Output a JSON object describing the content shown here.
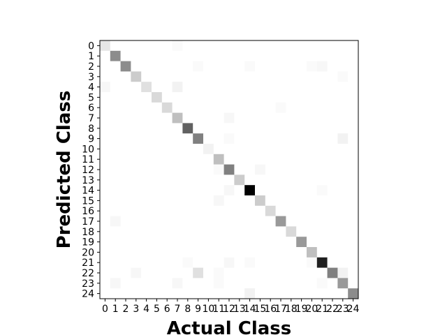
{
  "chart_data": {
    "type": "heatmap",
    "title": "",
    "xlabel": "Actual Class",
    "ylabel": "Predicted Class",
    "x_categories": [
      "0",
      "1",
      "2",
      "3",
      "4",
      "5",
      "6",
      "7",
      "8",
      "9",
      "10",
      "11",
      "12",
      "13",
      "14",
      "15",
      "16",
      "17",
      "18",
      "19",
      "20",
      "21",
      "22",
      "23",
      "24"
    ],
    "y_categories": [
      "0",
      "1",
      "2",
      "3",
      "4",
      "5",
      "6",
      "7",
      "8",
      "9",
      "10",
      "11",
      "12",
      "13",
      "14",
      "15",
      "16",
      "17",
      "18",
      "19",
      "20",
      "21",
      "22",
      "23",
      "24"
    ],
    "color_scale": "greys",
    "value_range": [
      0,
      1
    ],
    "colorbar": false,
    "grid": false,
    "values": [
      [
        0.1,
        0,
        0,
        0,
        0,
        0,
        0,
        0.02,
        0,
        0,
        0,
        0,
        0,
        0,
        0,
        0,
        0,
        0,
        0,
        0,
        0,
        0,
        0,
        0,
        0
      ],
      [
        0,
        0.45,
        0,
        0,
        0,
        0,
        0,
        0,
        0,
        0,
        0,
        0,
        0,
        0,
        0,
        0,
        0,
        0,
        0,
        0,
        0,
        0,
        0,
        0,
        0
      ],
      [
        0,
        0,
        0.45,
        0,
        0,
        0,
        0,
        0,
        0,
        0.02,
        0,
        0,
        0,
        0,
        0.02,
        0,
        0,
        0,
        0,
        0,
        0.02,
        0.03,
        0,
        0,
        0
      ],
      [
        0,
        0,
        0,
        0.2,
        0,
        0,
        0,
        0,
        0,
        0,
        0,
        0,
        0,
        0,
        0,
        0,
        0,
        0,
        0,
        0,
        0,
        0,
        0,
        0.02,
        0
      ],
      [
        0.03,
        0,
        0,
        0,
        0.12,
        0,
        0,
        0.05,
        0,
        0,
        0,
        0,
        0,
        0,
        0,
        0,
        0,
        0,
        0,
        0,
        0,
        0,
        0,
        0,
        0
      ],
      [
        0,
        0,
        0,
        0,
        0,
        0.15,
        0,
        0,
        0,
        0,
        0,
        0,
        0,
        0,
        0,
        0,
        0,
        0,
        0,
        0,
        0,
        0,
        0,
        0,
        0
      ],
      [
        0,
        0,
        0,
        0,
        0,
        0,
        0.15,
        0,
        0,
        0,
        0,
        0,
        0,
        0,
        0,
        0,
        0,
        0.02,
        0,
        0,
        0,
        0,
        0,
        0,
        0
      ],
      [
        0,
        0,
        0,
        0,
        0,
        0,
        0,
        0.25,
        0,
        0,
        0,
        0,
        0.03,
        0,
        0,
        0,
        0,
        0,
        0,
        0,
        0,
        0,
        0,
        0,
        0
      ],
      [
        0,
        0,
        0,
        0,
        0,
        0,
        0,
        0,
        0.62,
        0,
        0,
        0,
        0,
        0,
        0,
        0,
        0,
        0,
        0,
        0,
        0,
        0,
        0,
        0,
        0
      ],
      [
        0,
        0,
        0,
        0,
        0,
        0,
        0,
        0,
        0,
        0.5,
        0,
        0,
        0.02,
        0,
        0,
        0,
        0,
        0,
        0,
        0,
        0,
        0,
        0,
        0.05,
        0
      ],
      [
        0,
        0,
        0,
        0,
        0,
        0,
        0,
        0,
        0,
        0,
        0.05,
        0,
        0,
        0,
        0,
        0,
        0,
        0,
        0,
        0,
        0,
        0,
        0,
        0,
        0
      ],
      [
        0,
        0,
        0,
        0,
        0,
        0,
        0,
        0,
        0,
        0,
        0,
        0.25,
        0,
        0,
        0,
        0,
        0,
        0,
        0,
        0,
        0,
        0,
        0,
        0,
        0
      ],
      [
        0,
        0,
        0,
        0,
        0,
        0,
        0,
        0,
        0,
        0,
        0,
        0.02,
        0.5,
        0,
        0,
        0.03,
        0,
        0,
        0,
        0,
        0,
        0,
        0,
        0,
        0
      ],
      [
        0,
        0,
        0,
        0,
        0,
        0,
        0,
        0,
        0,
        0,
        0,
        0,
        0,
        0.2,
        0,
        0,
        0,
        0,
        0,
        0,
        0,
        0,
        0,
        0,
        0
      ],
      [
        0,
        0,
        0,
        0,
        0,
        0,
        0,
        0,
        0,
        0,
        0,
        0,
        0.03,
        0,
        1.0,
        0,
        0,
        0,
        0,
        0,
        0,
        0.02,
        0,
        0,
        0
      ],
      [
        0,
        0,
        0,
        0,
        0,
        0,
        0,
        0,
        0,
        0,
        0,
        0.03,
        0,
        0,
        0,
        0.2,
        0,
        0,
        0,
        0,
        0,
        0,
        0,
        0,
        0
      ],
      [
        0,
        0,
        0,
        0,
        0,
        0,
        0,
        0,
        0,
        0,
        0,
        0,
        0,
        0,
        0,
        0,
        0.15,
        0,
        0,
        0,
        0,
        0,
        0,
        0,
        0
      ],
      [
        0,
        0.03,
        0,
        0,
        0,
        0,
        0,
        0,
        0,
        0,
        0,
        0,
        0,
        0,
        0,
        0,
        0,
        0.4,
        0,
        0,
        0,
        0,
        0,
        0,
        0
      ],
      [
        0,
        0,
        0,
        0,
        0,
        0,
        0,
        0,
        0,
        0,
        0,
        0,
        0,
        0,
        0,
        0,
        0,
        0,
        0.15,
        0,
        0,
        0,
        0,
        0,
        0
      ],
      [
        0,
        0,
        0,
        0,
        0,
        0,
        0,
        0,
        0,
        0,
        0,
        0,
        0,
        0,
        0,
        0,
        0,
        0,
        0,
        0.4,
        0,
        0,
        0,
        0,
        0
      ],
      [
        0,
        0,
        0,
        0,
        0,
        0,
        0,
        0,
        0,
        0,
        0,
        0,
        0,
        0,
        0,
        0,
        0,
        0,
        0,
        0,
        0.25,
        0,
        0,
        0,
        0
      ],
      [
        0,
        0,
        0,
        0,
        0,
        0,
        0,
        0,
        0.02,
        0,
        0,
        0,
        0.03,
        0,
        0.02,
        0,
        0,
        0,
        0,
        0,
        0.02,
        0.88,
        0,
        0,
        0
      ],
      [
        0,
        0,
        0,
        0.03,
        0,
        0,
        0,
        0,
        0,
        0.12,
        0,
        0.02,
        0,
        0,
        0,
        0,
        0,
        0,
        0,
        0,
        0,
        0,
        0.5,
        0.05,
        0
      ],
      [
        0,
        0.03,
        0,
        0,
        0,
        0,
        0,
        0.03,
        0,
        0,
        0,
        0.02,
        0,
        0,
        0,
        0,
        0,
        0,
        0,
        0,
        0,
        0.02,
        0,
        0.4,
        0
      ],
      [
        0,
        0,
        0,
        0,
        0,
        0,
        0,
        0,
        0,
        0,
        0,
        0,
        0,
        0,
        0.05,
        0,
        0,
        0,
        0,
        0,
        0,
        0,
        0,
        0,
        0.45
      ]
    ]
  }
}
